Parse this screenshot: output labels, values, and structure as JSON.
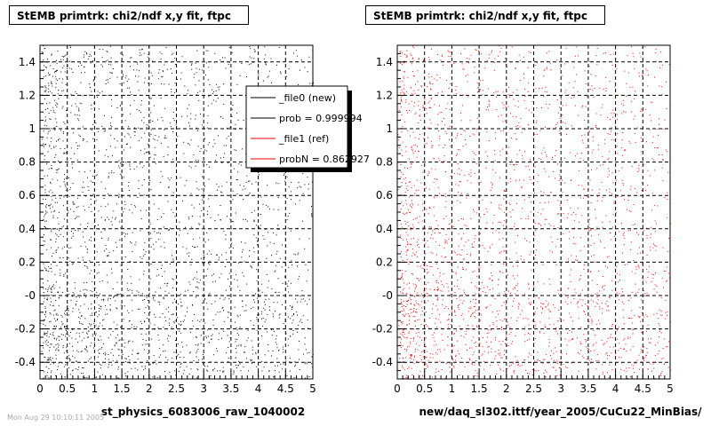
{
  "panels": [
    {
      "title": "StEMB primtrk: chi2/ndf x,y fit, ftpc",
      "xlabel": "st_physics_6083006_raw_1040002",
      "marker_color": "#000000"
    },
    {
      "title": "StEMB primtrk: chi2/ndf x,y fit, ftpc",
      "xlabel": "new/daq_sl302.ittf/year_2005/CuCu22_MinBias/",
      "marker_color": "#ff0000"
    }
  ],
  "legend": {
    "entries": [
      {
        "label": "_file0 (new)",
        "color": "#000000"
      },
      {
        "label": "prob = 0.999994",
        "color": "#000000"
      },
      {
        "label": "_file1 (ref)",
        "color": "#ff0000"
      },
      {
        "label": "probN = 0.862927",
        "color": "#ff0000"
      }
    ]
  },
  "footer": "Mon Aug 29 10:10:11 2005",
  "chart_data": [
    {
      "type": "scatter",
      "title": "StEMB primtrk: chi2/ndf x,y fit, ftpc",
      "xlabel": "st_physics_6083006_raw_1040002",
      "ylabel": "",
      "xlim": [
        0,
        5
      ],
      "ylim": [
        -0.5,
        1.5
      ],
      "x_ticks": [
        "0",
        "0.5",
        "1",
        "1.5",
        "2",
        "2.5",
        "3",
        "3.5",
        "4",
        "4.5",
        "5"
      ],
      "y_ticks": [
        "-0.4",
        "-0.2",
        "-0",
        "0.2",
        "0.4",
        "0.6",
        "0.8",
        "1",
        "1.2",
        "1.4"
      ],
      "grid": true,
      "legend_position": "top-right",
      "series": [
        {
          "name": "_file0 (new)",
          "color": "#000000"
        }
      ]
    },
    {
      "type": "scatter",
      "title": "StEMB primtrk: chi2/ndf x,y fit, ftpc",
      "xlabel": "new/daq_sl302.ittf/year_2005/CuCu22_MinBias/",
      "ylabel": "",
      "xlim": [
        0,
        5
      ],
      "ylim": [
        -0.5,
        1.5
      ],
      "x_ticks": [
        "0",
        "0.5",
        "1",
        "1.5",
        "2",
        "2.5",
        "3",
        "3.5",
        "4",
        "4.5",
        "5"
      ],
      "y_ticks": [
        "-0.4",
        "-0.2",
        "-0",
        "0.2",
        "0.4",
        "0.6",
        "0.8",
        "1",
        "1.2",
        "1.4"
      ],
      "grid": true,
      "series": [
        {
          "name": "_file1 (ref)",
          "color": "#ff0000"
        }
      ]
    }
  ]
}
